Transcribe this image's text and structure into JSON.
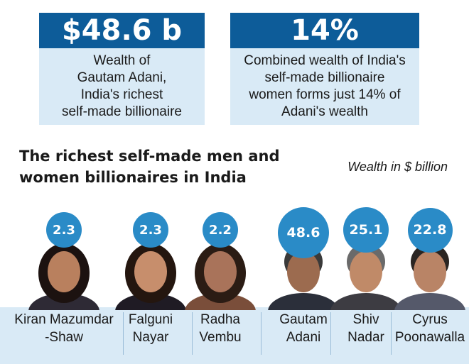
{
  "stats": [
    {
      "value": "$48.6 b",
      "text": "Wealth of\nGautam Adani,\nIndia's richest\nself-made billionaire"
    },
    {
      "value": "14%",
      "text": "Combined wealth of India's\nself-made billionaire\nwomen forms just 14% of\nAdani's wealth"
    }
  ],
  "chart_data": {
    "type": "bar",
    "title": "The richest self-made men and\nwomen billionaires in India",
    "unit_label": "Wealth in $ billion",
    "categories": [
      "Kiran Mazumdar\n-Shaw",
      "Falguni\nNayar",
      "Radha\nVembu",
      "Gautam\nAdani",
      "Shiv\nNadar",
      "Cyrus\nPoonawalla"
    ],
    "values": [
      2.3,
      2.3,
      2.2,
      48.6,
      25.1,
      22.8
    ],
    "value_labels": [
      "2.3",
      "2.3",
      "2.2",
      "48.6",
      "25.1",
      "22.8"
    ],
    "colors": {
      "bubble": "#2a8bc7",
      "band": "#d9eaf6",
      "header": "#0d5c99"
    }
  }
}
